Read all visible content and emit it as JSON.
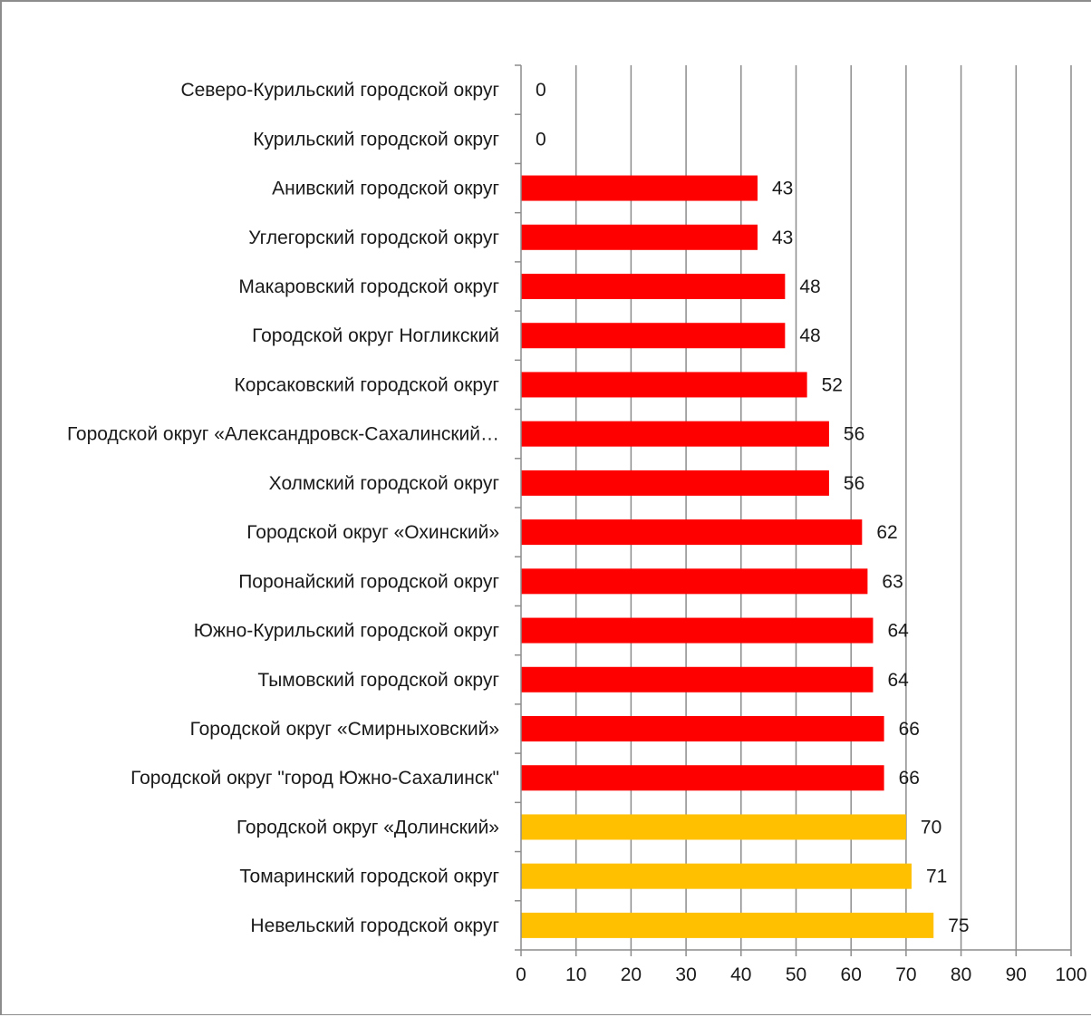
{
  "chart_data": {
    "type": "bar",
    "orientation": "horizontal",
    "title": "",
    "xlabel": "",
    "ylabel": "",
    "xlim": [
      0,
      100
    ],
    "x_ticks": [
      0,
      10,
      20,
      30,
      40,
      50,
      60,
      70,
      80,
      90,
      100
    ],
    "grid": "vertical major gridlines",
    "legend": "none",
    "colors": {
      "red": "#ff0000",
      "amber": "#ffc000",
      "grid": "#8c8c8c",
      "axis": "#8c8c8c"
    },
    "categories": [
      "Северо-Курильский городской округ",
      "Курильский городской округ",
      "Анивский городской округ",
      "Углегорский городской округ",
      "Макаровский городской округ",
      "Городской округ Ногликский",
      "Корсаковский городской округ",
      "Городской округ «Александровск-Сахалинский…",
      "Холмский городской округ",
      "Городской округ «Охинский»",
      "Поронайский городской округ",
      "Южно-Курильский городской округ",
      "Тымовский городской округ",
      "Городской округ «Смирныховский»",
      "Городской округ \"город Южно-Сахалинск\"",
      "Городской округ «Долинский»",
      "Томаринский городской округ",
      "Невельский городской округ"
    ],
    "values": [
      0,
      0,
      43,
      43,
      48,
      48,
      52,
      56,
      56,
      62,
      63,
      64,
      64,
      66,
      66,
      70,
      71,
      75
    ],
    "bar_colors": [
      "red",
      "red",
      "red",
      "red",
      "red",
      "red",
      "red",
      "red",
      "red",
      "red",
      "red",
      "red",
      "red",
      "red",
      "red",
      "amber",
      "amber",
      "amber"
    ]
  }
}
